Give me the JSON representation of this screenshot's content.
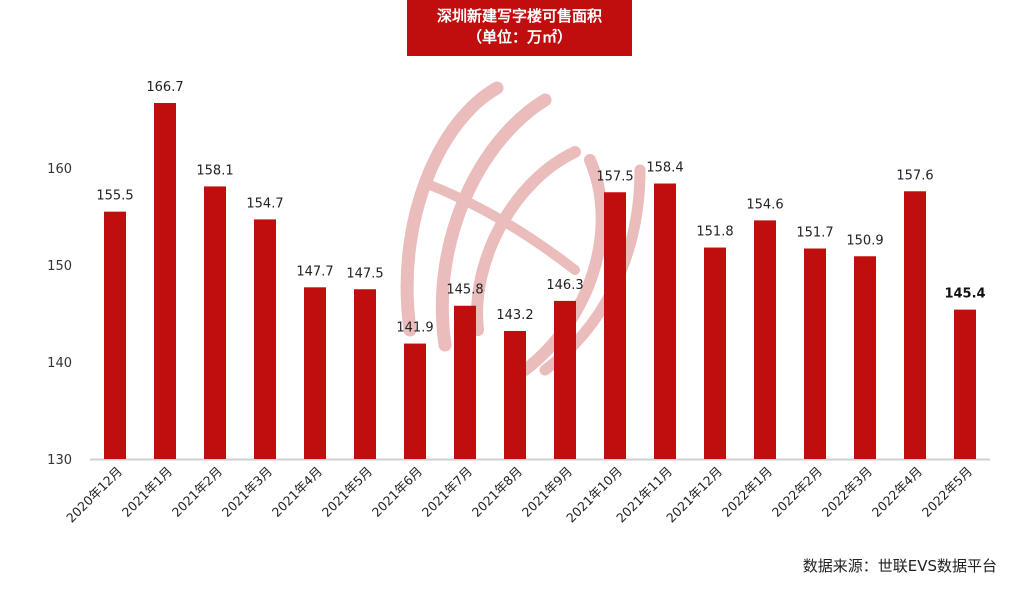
{
  "title": {
    "line1": "深圳新建写字楼可售面积",
    "line2": "（单位：万㎡）",
    "background": "#c00d0d"
  },
  "source": "数据来源：世联EVS数据平台",
  "colors": {
    "bar": "#c00d0d",
    "axis": "#d0d0d0",
    "watermark": "#e6b3b3"
  },
  "chart_data": {
    "type": "bar",
    "title": "深圳新建写字楼可售面积（单位：万㎡）",
    "xlabel": "",
    "ylabel": "",
    "ylim": [
      130,
      170
    ],
    "yticks": [
      130,
      140,
      150,
      160
    ],
    "grid": false,
    "legend": null,
    "categories": [
      "2020年12月",
      "2021年1月",
      "2021年2月",
      "2021年3月",
      "2021年4月",
      "2021年5月",
      "2021年6月",
      "2021年7月",
      "2021年8月",
      "2021年9月",
      "2021年10月",
      "2021年11月",
      "2021年12月",
      "2022年1月",
      "2022年2月",
      "2022年3月",
      "2022年4月",
      "2022年5月"
    ],
    "values": [
      155.5,
      166.7,
      158.1,
      154.7,
      147.7,
      147.5,
      141.9,
      145.8,
      143.2,
      146.3,
      157.5,
      158.4,
      151.8,
      154.6,
      151.7,
      150.9,
      157.6,
      145.4
    ],
    "value_labels": [
      "155.5",
      "166.7",
      "158.1",
      "154.7",
      "147.7",
      "147.5",
      "141.9",
      "145.8",
      "143.2",
      "146.3",
      "157.5",
      "158.4",
      "151.8",
      "154.6",
      "151.7",
      "150.9",
      "157.6",
      "145.4"
    ],
    "highlight_last_label_bold": true,
    "annotations": [
      "数据来源：世联EVS数据平台"
    ]
  }
}
